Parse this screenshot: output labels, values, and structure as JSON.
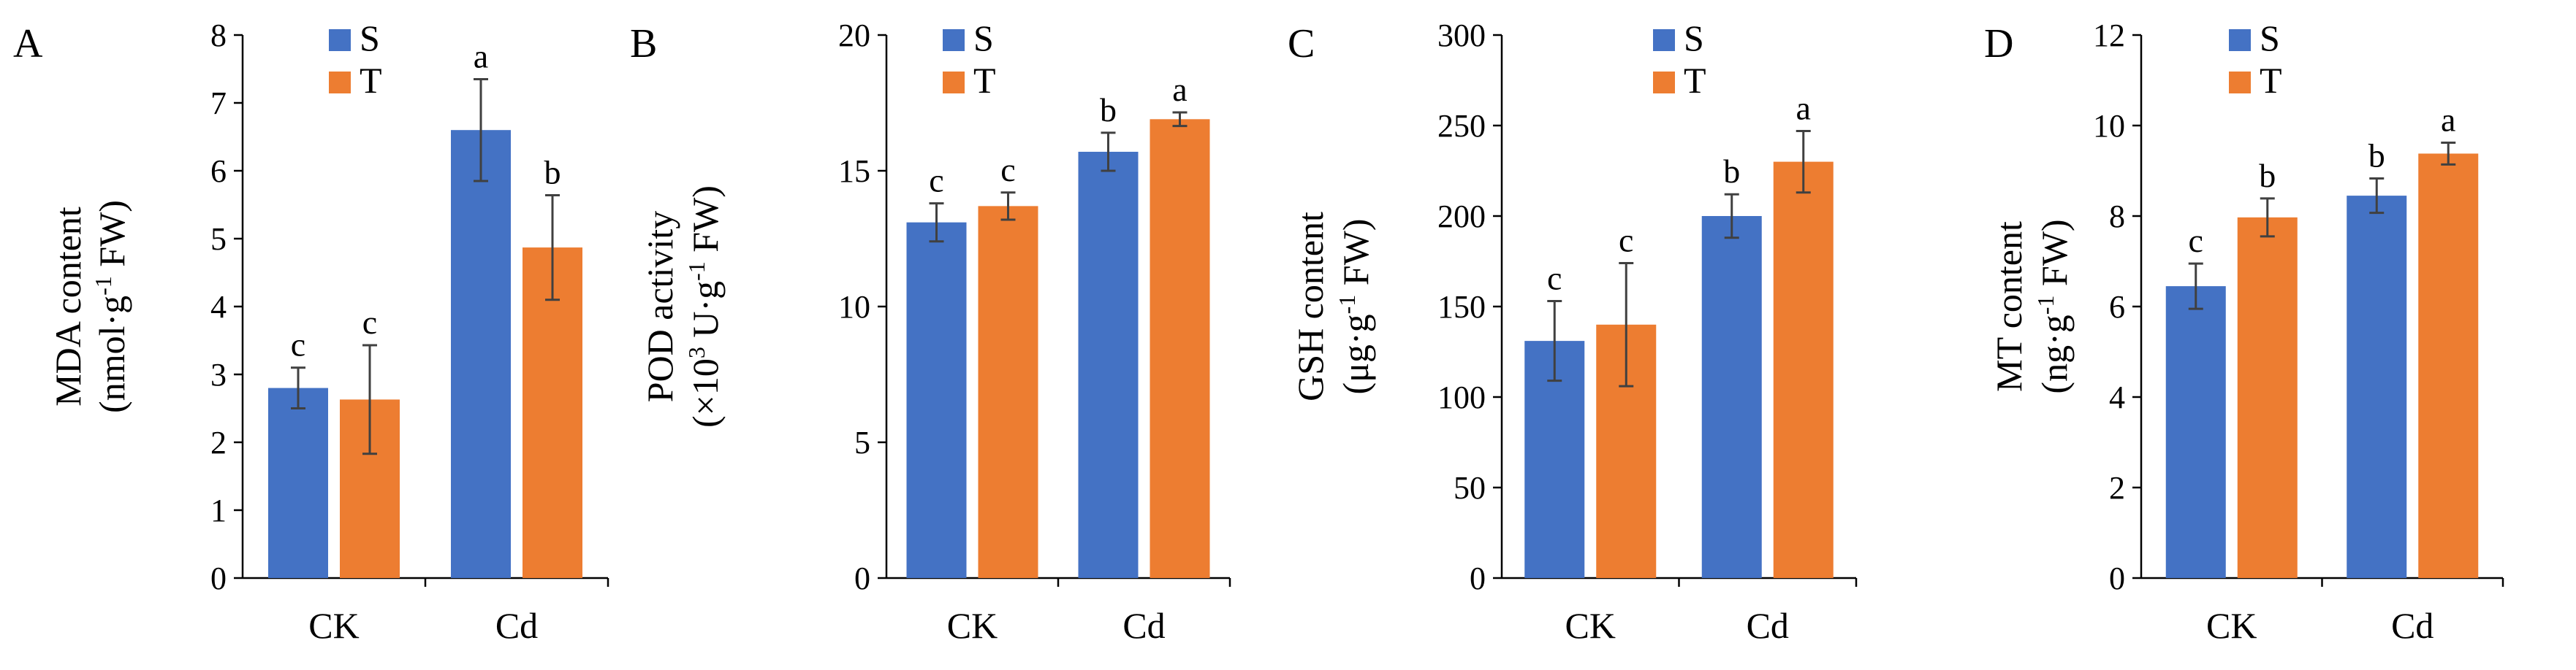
{
  "chart_data": [
    {
      "type": "bar",
      "panel": "A",
      "ylabel_line1": "MDA content",
      "ylabel_line2_prefix": "(nmol·g",
      "ylabel_line2_sup": "-1",
      "ylabel_line2_suffix": " FW)",
      "ylim": [
        0,
        8
      ],
      "yticks": [
        0,
        1,
        2,
        3,
        4,
        5,
        6,
        7,
        8
      ],
      "categories": [
        "CK",
        "Cd"
      ],
      "series": [
        {
          "name": "S",
          "color": "#4472C4",
          "values": [
            2.8,
            6.6
          ],
          "errors": [
            0.3,
            0.75
          ],
          "labels": [
            "c",
            "a"
          ]
        },
        {
          "name": "T",
          "color": "#ED7D31",
          "values": [
            2.63,
            4.87
          ],
          "errors": [
            0.8,
            0.77
          ],
          "labels": [
            "c",
            "b"
          ]
        }
      ]
    },
    {
      "type": "bar",
      "panel": "B",
      "ylabel_line1": "POD activity",
      "ylabel_line2_prefix": "(×10",
      "ylabel_line2_sup": "3",
      "ylabel_line2_mid": " U·g",
      "ylabel_line2_sup2": "-1",
      "ylabel_line2_suffix": " FW)",
      "ylim": [
        0,
        20
      ],
      "yticks": [
        0,
        5,
        10,
        15,
        20
      ],
      "categories": [
        "CK",
        "Cd"
      ],
      "series": [
        {
          "name": "S",
          "color": "#4472C4",
          "values": [
            13.1,
            15.7
          ],
          "errors": [
            0.7,
            0.7
          ],
          "labels": [
            "c",
            "b"
          ]
        },
        {
          "name": "T",
          "color": "#ED7D31",
          "values": [
            13.7,
            16.9
          ],
          "errors": [
            0.5,
            0.25
          ],
          "labels": [
            "c",
            "a"
          ]
        }
      ]
    },
    {
      "type": "bar",
      "panel": "C",
      "ylabel_line1": "GSH content",
      "ylabel_line2_prefix": "(μg·g",
      "ylabel_line2_sup": "-1",
      "ylabel_line2_suffix": " FW)",
      "ylim": [
        0,
        300
      ],
      "yticks": [
        0,
        50,
        100,
        150,
        200,
        250,
        300
      ],
      "categories": [
        "CK",
        "Cd"
      ],
      "series": [
        {
          "name": "S",
          "color": "#4472C4",
          "values": [
            131,
            200
          ],
          "errors": [
            22,
            12
          ],
          "labels": [
            "c",
            "b"
          ]
        },
        {
          "name": "T",
          "color": "#ED7D31",
          "values": [
            140,
            230
          ],
          "errors": [
            34,
            17
          ],
          "labels": [
            "c",
            "a"
          ]
        }
      ]
    },
    {
      "type": "bar",
      "panel": "D",
      "ylabel_line1": "MT content",
      "ylabel_line2_prefix": "(ng·g",
      "ylabel_line2_sup": "-1",
      "ylabel_line2_suffix": " FW)",
      "ylim": [
        0,
        12
      ],
      "yticks": [
        0,
        2,
        4,
        6,
        8,
        10,
        12
      ],
      "categories": [
        "CK",
        "Cd"
      ],
      "series": [
        {
          "name": "S",
          "color": "#4472C4",
          "values": [
            6.45,
            8.45
          ],
          "errors": [
            0.5,
            0.38
          ],
          "labels": [
            "c",
            "b"
          ]
        },
        {
          "name": "T",
          "color": "#ED7D31",
          "values": [
            7.97,
            9.38
          ],
          "errors": [
            0.42,
            0.24
          ],
          "labels": [
            "b",
            "a"
          ]
        }
      ]
    }
  ]
}
